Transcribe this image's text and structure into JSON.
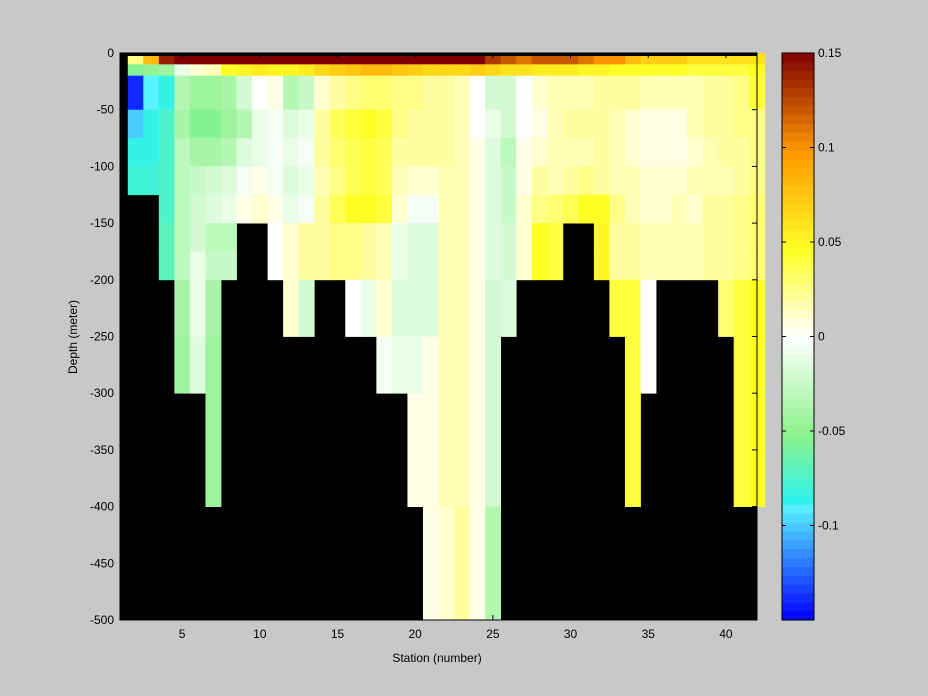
{
  "chart_data": {
    "type": "heatmap",
    "title": "",
    "xlabel": "Station (number)",
    "ylabel": "Depth (meter)",
    "x_range": [
      1,
      42
    ],
    "y_range": [
      -500,
      0
    ],
    "x_ticks": [
      5,
      10,
      15,
      20,
      25,
      30,
      35,
      40
    ],
    "y_ticks": [
      0,
      -50,
      -100,
      -150,
      -200,
      -250,
      -300,
      -350,
      -400,
      -450,
      -500
    ],
    "colorbar": {
      "range": [
        -0.15,
        0.15
      ],
      "ticks": [
        0.15,
        0.1,
        0.05,
        0,
        -0.05,
        -0.1
      ],
      "tick_labels": [
        "0.15",
        "0.1",
        "0.05",
        "0",
        "-0.05",
        "-0.1"
      ]
    },
    "no_data_color": "#000000",
    "stations": [
      2,
      3,
      4,
      5,
      6,
      7,
      8,
      9,
      10,
      11,
      12,
      13,
      14,
      15,
      16,
      17,
      18,
      19,
      20,
      21,
      22,
      23,
      24,
      25,
      26,
      27,
      28,
      29,
      30,
      31,
      32,
      33,
      34,
      35,
      36,
      37,
      38,
      39,
      40,
      41,
      42
    ],
    "max_depth": [
      -125,
      -125,
      -200,
      -300,
      -300,
      -400,
      -200,
      -150,
      -150,
      -200,
      -250,
      -250,
      -200,
      -200,
      -250,
      -250,
      -300,
      -300,
      -400,
      -500,
      -500,
      -500,
      -500,
      -400,
      -250,
      -200,
      -200,
      -200,
      -150,
      -150,
      -200,
      -250,
      -400,
      -300,
      -300,
      -200,
      -200,
      -200,
      -250,
      -400,
      -400
    ],
    "bands": [
      {
        "top": 0,
        "bottom": -10,
        "values": [
          0.025,
          0.08,
          0.14,
          0.15,
          0.15,
          0.15,
          0.15,
          0.15,
          0.15,
          0.15,
          0.15,
          0.15,
          0.15,
          0.15,
          0.15,
          0.15,
          0.15,
          0.15,
          0.15,
          0.15,
          0.15,
          0.15,
          0.15,
          0.13,
          0.12,
          0.11,
          0.12,
          0.12,
          0.12,
          0.11,
          0.1,
          0.1,
          0.08,
          0.07,
          0.07,
          0.07,
          0.06,
          0.06,
          0.06,
          0.06,
          0.06
        ]
      },
      {
        "top": -10,
        "bottom": -20,
        "values": [
          -0.055,
          -0.05,
          -0.045,
          -0.01,
          0.01,
          0.015,
          0.045,
          0.05,
          0.055,
          0.05,
          0.05,
          0.055,
          0.065,
          0.07,
          0.075,
          0.08,
          0.08,
          0.075,
          0.07,
          0.065,
          0.065,
          0.065,
          0.07,
          0.065,
          0.06,
          0.06,
          0.055,
          0.055,
          0.055,
          0.05,
          0.05,
          0.045,
          0.045,
          0.045,
          0.045,
          0.045,
          0.04,
          0.04,
          0.04,
          0.04,
          0.045
        ]
      },
      {
        "top": -20,
        "bottom": -50,
        "values": [
          -0.14,
          -0.09,
          -0.085,
          -0.035,
          -0.045,
          -0.045,
          -0.04,
          -0.02,
          0.0,
          0.005,
          -0.035,
          -0.025,
          0.01,
          0.02,
          0.025,
          0.03,
          0.03,
          0.025,
          0.025,
          0.02,
          0.02,
          0.015,
          0.0,
          -0.02,
          -0.02,
          0.0,
          0.01,
          0.015,
          0.015,
          0.015,
          0.02,
          0.02,
          0.02,
          0.015,
          0.015,
          0.015,
          0.015,
          0.02,
          0.02,
          0.025,
          0.04
        ]
      },
      {
        "top": -50,
        "bottom": -75,
        "values": [
          -0.1,
          -0.085,
          -0.075,
          -0.04,
          -0.055,
          -0.055,
          -0.045,
          -0.035,
          -0.01,
          -0.005,
          -0.015,
          -0.01,
          0.02,
          0.035,
          0.04,
          0.045,
          0.04,
          0.025,
          0.02,
          0.02,
          0.02,
          0.015,
          0.0,
          -0.01,
          -0.02,
          0.0,
          0.005,
          0.015,
          0.02,
          0.02,
          0.02,
          0.015,
          0.01,
          0.005,
          0.005,
          0.005,
          0.015,
          0.02,
          0.02,
          0.025,
          0.025
        ]
      },
      {
        "top": -75,
        "bottom": -100,
        "values": [
          -0.085,
          -0.085,
          -0.075,
          -0.03,
          -0.04,
          -0.04,
          -0.035,
          -0.015,
          -0.01,
          -0.005,
          -0.01,
          -0.005,
          0.02,
          0.03,
          0.035,
          0.04,
          0.035,
          0.02,
          0.02,
          0.02,
          0.02,
          0.015,
          0.005,
          -0.015,
          -0.03,
          0.005,
          0.01,
          0.015,
          0.015,
          0.015,
          0.02,
          0.015,
          0.01,
          0.005,
          0.005,
          0.005,
          0.01,
          0.015,
          0.02,
          0.02,
          0.025
        ]
      },
      {
        "top": -100,
        "bottom": -125,
        "values": [
          -0.08,
          -0.08,
          -0.075,
          -0.03,
          -0.025,
          -0.02,
          -0.015,
          -0.005,
          0.005,
          -0.005,
          -0.015,
          -0.01,
          0.015,
          0.025,
          0.035,
          0.04,
          0.035,
          0.015,
          0.01,
          0.01,
          0.015,
          0.015,
          0.005,
          -0.015,
          -0.025,
          0.005,
          0.02,
          0.015,
          0.02,
          0.025,
          0.02,
          0.015,
          0.015,
          0.01,
          0.01,
          0.01,
          0.015,
          0.015,
          0.015,
          0.02,
          0.025
        ]
      },
      {
        "top": -125,
        "bottom": -150,
        "values": [
          null,
          null,
          -0.075,
          -0.03,
          -0.02,
          -0.015,
          -0.01,
          0.005,
          0.01,
          0.005,
          -0.01,
          -0.005,
          0.02,
          0.035,
          0.045,
          0.045,
          0.04,
          0.01,
          -0.005,
          -0.005,
          0.015,
          0.015,
          0.005,
          -0.015,
          -0.025,
          0.01,
          0.025,
          0.03,
          0.035,
          0.045,
          0.045,
          0.025,
          0.015,
          0.01,
          0.01,
          0.015,
          0.01,
          0.02,
          0.02,
          0.025,
          0.03
        ]
      },
      {
        "top": -150,
        "bottom": -175,
        "values": [
          null,
          null,
          -0.07,
          -0.03,
          -0.02,
          -0.03,
          -0.03,
          null,
          null,
          0.0,
          0.01,
          0.02,
          0.02,
          0.025,
          0.025,
          0.02,
          0.015,
          -0.01,
          -0.015,
          -0.015,
          0.015,
          0.015,
          0.005,
          -0.015,
          -0.02,
          0.01,
          0.045,
          0.04,
          null,
          null,
          0.05,
          0.02,
          0.02,
          0.015,
          0.015,
          0.015,
          0.015,
          0.02,
          0.02,
          0.025,
          0.03
        ]
      },
      {
        "top": -175,
        "bottom": -200,
        "values": [
          null,
          null,
          -0.07,
          -0.03,
          -0.01,
          -0.025,
          -0.025,
          null,
          null,
          0.0,
          0.01,
          0.02,
          0.02,
          0.025,
          0.025,
          0.02,
          0.015,
          -0.01,
          -0.015,
          -0.015,
          0.015,
          0.015,
          0.005,
          -0.015,
          -0.02,
          0.01,
          0.045,
          0.04,
          null,
          null,
          0.05,
          0.02,
          0.02,
          0.015,
          0.015,
          0.015,
          0.015,
          0.02,
          0.02,
          0.025,
          0.03
        ]
      },
      {
        "top": -200,
        "bottom": -250,
        "values": [
          null,
          null,
          null,
          -0.04,
          -0.01,
          -0.04,
          null,
          null,
          null,
          null,
          0.01,
          -0.02,
          null,
          null,
          0.0,
          -0.01,
          0.01,
          -0.015,
          -0.015,
          -0.015,
          0.015,
          0.015,
          0.005,
          -0.02,
          -0.015,
          null,
          null,
          null,
          null,
          null,
          null,
          0.04,
          0.04,
          0.0,
          null,
          null,
          null,
          null,
          0.03,
          0.04,
          0.045
        ]
      },
      {
        "top": -250,
        "bottom": -300,
        "values": [
          null,
          null,
          null,
          -0.045,
          -0.015,
          -0.045,
          null,
          null,
          null,
          null,
          null,
          null,
          null,
          null,
          null,
          null,
          -0.005,
          -0.01,
          -0.01,
          0.005,
          0.015,
          0.015,
          0.005,
          -0.02,
          null,
          null,
          null,
          null,
          null,
          null,
          null,
          null,
          0.04,
          0.0,
          null,
          null,
          null,
          null,
          null,
          0.04,
          0.045
        ]
      },
      {
        "top": -300,
        "bottom": -400,
        "values": [
          null,
          null,
          null,
          null,
          null,
          -0.045,
          null,
          null,
          null,
          null,
          null,
          null,
          null,
          null,
          null,
          null,
          null,
          null,
          0.005,
          0.005,
          0.015,
          0.015,
          0.005,
          -0.02,
          null,
          null,
          null,
          null,
          null,
          null,
          null,
          null,
          0.04,
          null,
          null,
          null,
          null,
          null,
          null,
          0.04,
          0.045
        ]
      },
      {
        "top": -400,
        "bottom": -500,
        "values": [
          null,
          null,
          null,
          null,
          null,
          null,
          null,
          null,
          null,
          null,
          null,
          null,
          null,
          null,
          null,
          null,
          null,
          null,
          null,
          0.005,
          0.01,
          0.02,
          0.005,
          -0.035,
          null,
          null,
          null,
          null,
          null,
          null,
          null,
          null,
          null,
          null,
          null,
          null,
          null,
          null,
          null,
          null,
          null
        ]
      }
    ]
  }
}
